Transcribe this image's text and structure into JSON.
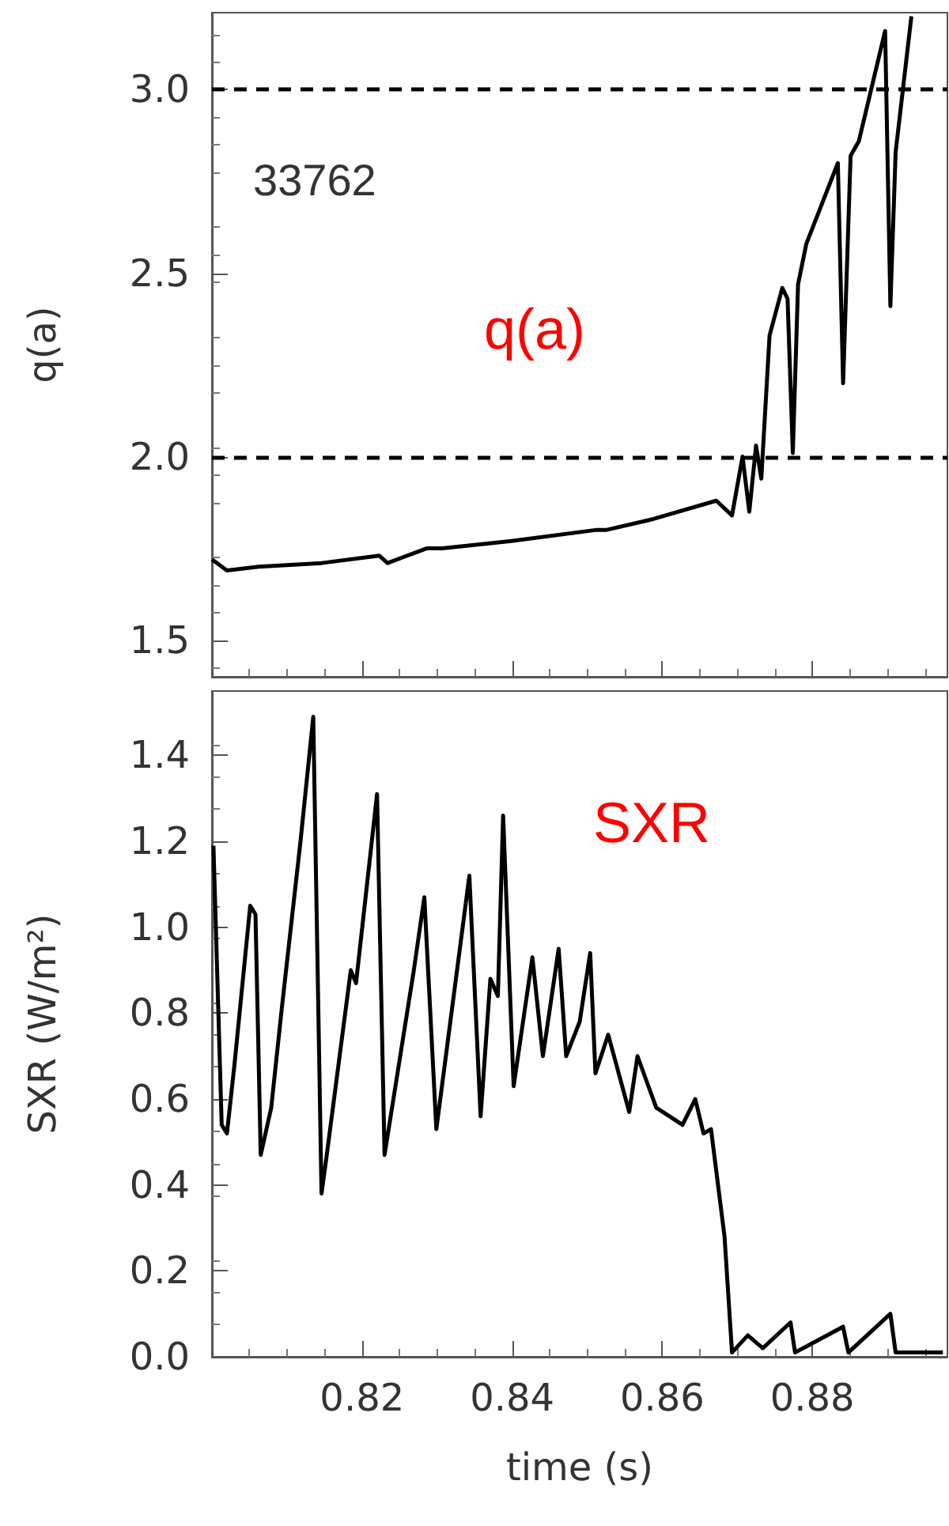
{
  "chart_data": [
    {
      "type": "line",
      "ylabel": "q(a)",
      "annotations": [
        "33762",
        "q(a)"
      ],
      "xlim": [
        0.8,
        0.898
      ],
      "xticks": [
        0.82,
        0.84,
        0.86,
        0.88
      ],
      "ylim": [
        1.4,
        3.21
      ],
      "yticks": [
        {
          "value": 1.5,
          "label": "1.5"
        },
        {
          "value": 2,
          "label": "2.0"
        },
        {
          "value": 2.5,
          "label": "2.5"
        },
        {
          "value": 3,
          "label": "3.0"
        }
      ],
      "tick_labels": "y",
      "marker": "none",
      "line_style": "solid",
      "ref_lines": [
        {
          "axis": "y",
          "value": 2,
          "label": null,
          "line_style": "dashed",
          "color": "#000000"
        },
        {
          "axis": "y",
          "value": 3,
          "label": null,
          "line_style": "dashed",
          "color": "#000000"
        }
      ],
      "series": [
        {
          "color": "#000000",
          "x": [
            0.8,
            0.802,
            0.8062,
            0.8146,
            0.8223,
            0.8234,
            0.8286,
            0.8307,
            0.8399,
            0.8511,
            0.8525,
            0.8588,
            0.8672,
            0.8693,
            0.8707,
            0.8716,
            0.8725,
            0.8732,
            0.8743,
            0.876,
            0.8767,
            0.8774,
            0.8781,
            0.8792,
            0.8834,
            0.8841,
            0.8851,
            0.8862,
            0.8897,
            0.8904,
            0.8911,
            0.8932
          ],
          "values": [
            1.72,
            1.69,
            1.7,
            1.71,
            1.73,
            1.71,
            1.75,
            1.75,
            1.77,
            1.8,
            1.8,
            1.83,
            1.88,
            1.84,
            2.0,
            1.85,
            2.03,
            1.94,
            2.33,
            2.46,
            2.43,
            2.01,
            2.47,
            2.58,
            2.8,
            2.2,
            2.82,
            2.86,
            3.16,
            2.41,
            2.83,
            3.2
          ]
        }
      ]
    },
    {
      "type": "line",
      "ylabel": "SXR (W/m²)",
      "xlabel": "time (s)",
      "annotations": [
        "SXR"
      ],
      "xlim": [
        0.8,
        0.898
      ],
      "xticks": [
        0.82,
        0.84,
        0.86,
        0.88
      ],
      "ylim": [
        0,
        1.55
      ],
      "yticks": [
        {
          "value": 0,
          "label": "0.0"
        },
        {
          "value": 0.2,
          "label": "0.2"
        },
        {
          "value": 0.4,
          "label": "0.4"
        },
        {
          "value": 0.6,
          "label": "0.6"
        },
        {
          "value": 0.8,
          "label": "0.8"
        },
        {
          "value": 1,
          "label": "1.0"
        },
        {
          "value": 1.2,
          "label": "1.2"
        },
        {
          "value": 1.4,
          "label": "1.4"
        }
      ],
      "marker": "none",
      "line_style": "solid",
      "series": [
        {
          "color": "#000000",
          "x": [
            0.8002,
            0.8013,
            0.802,
            0.803,
            0.8051,
            0.8058,
            0.8065,
            0.8079,
            0.8093,
            0.8118,
            0.8135,
            0.8146,
            0.8153,
            0.8185,
            0.8192,
            0.822,
            0.823,
            0.8269,
            0.8283,
            0.8299,
            0.8343,
            0.8358,
            0.8371,
            0.8381,
            0.8388,
            0.8402,
            0.8427,
            0.8441,
            0.8462,
            0.8472,
            0.849,
            0.8504,
            0.8511,
            0.8528,
            0.8556,
            0.8567,
            0.8592,
            0.8627,
            0.8644,
            0.8655,
            0.8665,
            0.8683,
            0.8693,
            0.8714,
            0.8734,
            0.8771,
            0.8777,
            0.8841,
            0.8848,
            0.8904,
            0.8911,
            0.8974
          ],
          "values": [
            1.19,
            0.54,
            0.52,
            0.68,
            1.05,
            1.03,
            0.47,
            0.58,
            0.81,
            1.2,
            1.49,
            0.38,
            0.47,
            0.9,
            0.87,
            1.31,
            0.47,
            0.9,
            1.07,
            0.53,
            1.12,
            0.56,
            0.88,
            0.84,
            1.26,
            0.63,
            0.93,
            0.7,
            0.95,
            0.7,
            0.78,
            0.94,
            0.66,
            0.75,
            0.57,
            0.7,
            0.58,
            0.54,
            0.6,
            0.52,
            0.53,
            0.28,
            0.01,
            0.05,
            0.02,
            0.08,
            0.01,
            0.07,
            0.01,
            0.1,
            0.01,
            0.01
          ]
        }
      ]
    }
  ]
}
